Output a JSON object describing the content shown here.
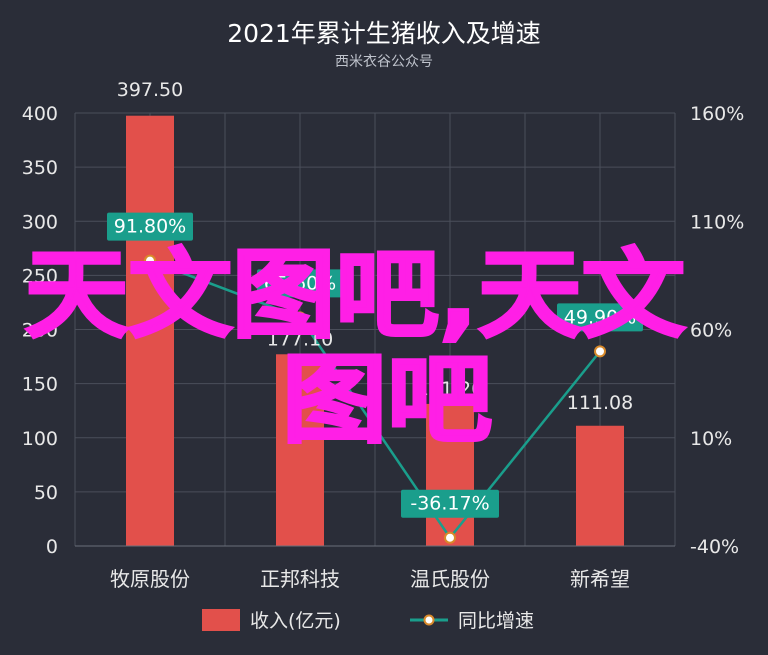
{
  "chart_data": {
    "type": "bar+line",
    "title": "2021年累计生猪收入及增速",
    "subtitle": "西米衣谷公众号",
    "categories": [
      "牧原股份",
      "正邦科技",
      "温氏股份",
      "新希望"
    ],
    "series": [
      {
        "name": "收入(亿元)",
        "type": "bar",
        "axis": "left",
        "values": [
          397.5,
          177.1,
          131.26,
          111.08
        ],
        "labels": [
          "397.50",
          "177.10",
          "131.26",
          "111.08"
        ]
      },
      {
        "name": "同比增速",
        "type": "line",
        "axis": "right",
        "values": [
          91.8,
          65.6,
          -36.17,
          49.9
        ],
        "labels": [
          "91.80%",
          "65.60%",
          "-36.17%",
          "49.90%"
        ]
      }
    ],
    "y_left": {
      "min": 0,
      "max": 400,
      "ticks": [
        "0",
        "50",
        "100",
        "150",
        "200",
        "250",
        "300",
        "350",
        "400"
      ]
    },
    "y_right": {
      "min": -40,
      "max": 160,
      "ticks": [
        "-40%",
        "10%",
        "60%",
        "110%",
        "160%"
      ]
    },
    "legend_position": "bottom",
    "grid": true,
    "colors": {
      "bar": "#e2504b",
      "line": "#1a9e8c",
      "label_box": "#1a9e8c",
      "background": "#2a2d38",
      "grid": "#4a4e5a",
      "text": "#e8e8e8",
      "title": "#ffffff"
    }
  },
  "watermark": "天文图吧,天文图吧"
}
